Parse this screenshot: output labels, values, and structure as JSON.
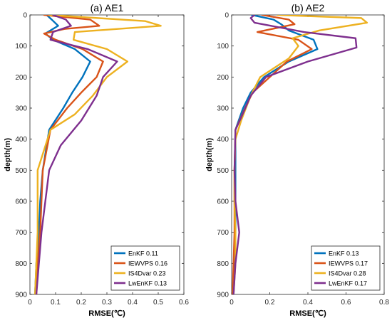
{
  "chart_data": [
    {
      "type": "line",
      "title": "(a) AE1",
      "xlabel": "RMSE(℃)",
      "ylabel": "depth(m)",
      "xlim": [
        0,
        0.6
      ],
      "ylim": [
        0,
        900
      ],
      "y_reversed": true,
      "xticks": [
        "0",
        "0.1",
        "0.2",
        "0.3",
        "0.4",
        "0.5",
        "0.6"
      ],
      "yticks": [
        "0",
        "100",
        "200",
        "300",
        "400",
        "500",
        "600",
        "700",
        "800",
        "900"
      ],
      "legend_position": "bottom-right",
      "series": [
        {
          "name": "EnKF 0.11",
          "color": "#0072BD",
          "points": [
            [
              0.065,
              0
            ],
            [
              0.085,
              15
            ],
            [
              0.11,
              35
            ],
            [
              0.06,
              60
            ],
            [
              0.09,
              80
            ],
            [
              0.175,
              110
            ],
            [
              0.235,
              150
            ],
            [
              0.205,
              200
            ],
            [
              0.165,
              250
            ],
            [
              0.13,
              300
            ],
            [
              0.075,
              370
            ],
            [
              0.05,
              500
            ],
            [
              0.04,
              600
            ],
            [
              0.035,
              700
            ],
            [
              0.025,
              800
            ],
            [
              0.02,
              900
            ]
          ]
        },
        {
          "name": "IEWVPS 0.16",
          "color": "#D95319",
          "points": [
            [
              0.055,
              0
            ],
            [
              0.235,
              15
            ],
            [
              0.27,
              35
            ],
            [
              0.135,
              45
            ],
            [
              0.055,
              60
            ],
            [
              0.1,
              80
            ],
            [
              0.205,
              110
            ],
            [
              0.285,
              150
            ],
            [
              0.26,
              200
            ],
            [
              0.2,
              250
            ],
            [
              0.145,
              300
            ],
            [
              0.08,
              370
            ],
            [
              0.05,
              500
            ],
            [
              0.045,
              600
            ],
            [
              0.04,
              700
            ],
            [
              0.03,
              800
            ],
            [
              0.025,
              900
            ]
          ]
        },
        {
          "name": "IS4Dvar 0.23",
          "color": "#EDB120",
          "points": [
            [
              0.075,
              0
            ],
            [
              0.45,
              20
            ],
            [
              0.51,
              35
            ],
            [
              0.175,
              55
            ],
            [
              0.17,
              80
            ],
            [
              0.3,
              110
            ],
            [
              0.38,
              150
            ],
            [
              0.3,
              200
            ],
            [
              0.245,
              260
            ],
            [
              0.175,
              320
            ],
            [
              0.08,
              370
            ],
            [
              0.03,
              500
            ],
            [
              0.03,
              600
            ],
            [
              0.03,
              700
            ],
            [
              0.025,
              800
            ],
            [
              0.02,
              900
            ]
          ]
        },
        {
          "name": "LwEnKF 0.13",
          "color": "#7E2F8E",
          "points": [
            [
              0.09,
              0
            ],
            [
              0.14,
              15
            ],
            [
              0.16,
              35
            ],
            [
              0.09,
              55
            ],
            [
              0.08,
              80
            ],
            [
              0.225,
              110
            ],
            [
              0.34,
              150
            ],
            [
              0.285,
              200
            ],
            [
              0.26,
              260
            ],
            [
              0.2,
              340
            ],
            [
              0.12,
              420
            ],
            [
              0.075,
              500
            ],
            [
              0.06,
              600
            ],
            [
              0.045,
              700
            ],
            [
              0.035,
              800
            ],
            [
              0.025,
              900
            ]
          ]
        }
      ]
    },
    {
      "type": "line",
      "title": "(b) AE2",
      "xlabel": "RMSE(℃)",
      "ylabel": "depth(m)",
      "xlim": [
        0,
        0.8
      ],
      "ylim": [
        0,
        900
      ],
      "y_reversed": true,
      "xticks": [
        "0",
        "0.2",
        "0.4",
        "0.6",
        "0.8"
      ],
      "yticks": [
        "0",
        "100",
        "200",
        "300",
        "400",
        "500",
        "600",
        "700",
        "800",
        "900"
      ],
      "legend_position": "bottom-right",
      "series": [
        {
          "name": "EnKF 0.13",
          "color": "#0072BD",
          "points": [
            [
              0.105,
              0
            ],
            [
              0.22,
              15
            ],
            [
              0.26,
              30
            ],
            [
              0.3,
              50
            ],
            [
              0.43,
              80
            ],
            [
              0.45,
              110
            ],
            [
              0.3,
              150
            ],
            [
              0.17,
              200
            ],
            [
              0.1,
              250
            ],
            [
              0.06,
              300
            ],
            [
              0.02,
              370
            ],
            [
              0.02,
              500
            ],
            [
              0.02,
              600
            ],
            [
              0.02,
              700
            ],
            [
              0.015,
              800
            ],
            [
              0.01,
              900
            ]
          ]
        },
        {
          "name": "IEWVPS 0.17",
          "color": "#D95319",
          "points": [
            [
              0.16,
              0
            ],
            [
              0.3,
              15
            ],
            [
              0.33,
              30
            ],
            [
              0.135,
              55
            ],
            [
              0.35,
              80
            ],
            [
              0.42,
              110
            ],
            [
              0.29,
              150
            ],
            [
              0.2,
              200
            ],
            [
              0.11,
              250
            ],
            [
              0.07,
              300
            ],
            [
              0.02,
              370
            ],
            [
              0.015,
              500
            ],
            [
              0.015,
              600
            ],
            [
              0.015,
              700
            ],
            [
              0.01,
              800
            ],
            [
              0.005,
              900
            ]
          ]
        },
        {
          "name": "IS4Dvar 0.28",
          "color": "#EDB120",
          "points": [
            [
              0.24,
              0
            ],
            [
              0.68,
              10
            ],
            [
              0.71,
              25
            ],
            [
              0.46,
              50
            ],
            [
              0.32,
              75
            ],
            [
              0.35,
              100
            ],
            [
              0.3,
              140
            ],
            [
              0.15,
              200
            ],
            [
              0.1,
              260
            ],
            [
              0.05,
              340
            ],
            [
              0.02,
              400
            ],
            [
              0.015,
              500
            ],
            [
              0.015,
              600
            ],
            [
              0.02,
              700
            ],
            [
              0.02,
              800
            ],
            [
              0.01,
              900
            ]
          ]
        },
        {
          "name": "LwEnKF 0.17",
          "color": "#7E2F8E",
          "points": [
            [
              0.12,
              0
            ],
            [
              0.1,
              10
            ],
            [
              0.12,
              25
            ],
            [
              0.38,
              55
            ],
            [
              0.65,
              75
            ],
            [
              0.655,
              105
            ],
            [
              0.4,
              150
            ],
            [
              0.18,
              200
            ],
            [
              0.1,
              260
            ],
            [
              0.05,
              330
            ],
            [
              0.02,
              370
            ],
            [
              0.015,
              500
            ],
            [
              0.02,
              600
            ],
            [
              0.04,
              700
            ],
            [
              0.02,
              800
            ],
            [
              0.01,
              900
            ]
          ]
        }
      ]
    }
  ]
}
